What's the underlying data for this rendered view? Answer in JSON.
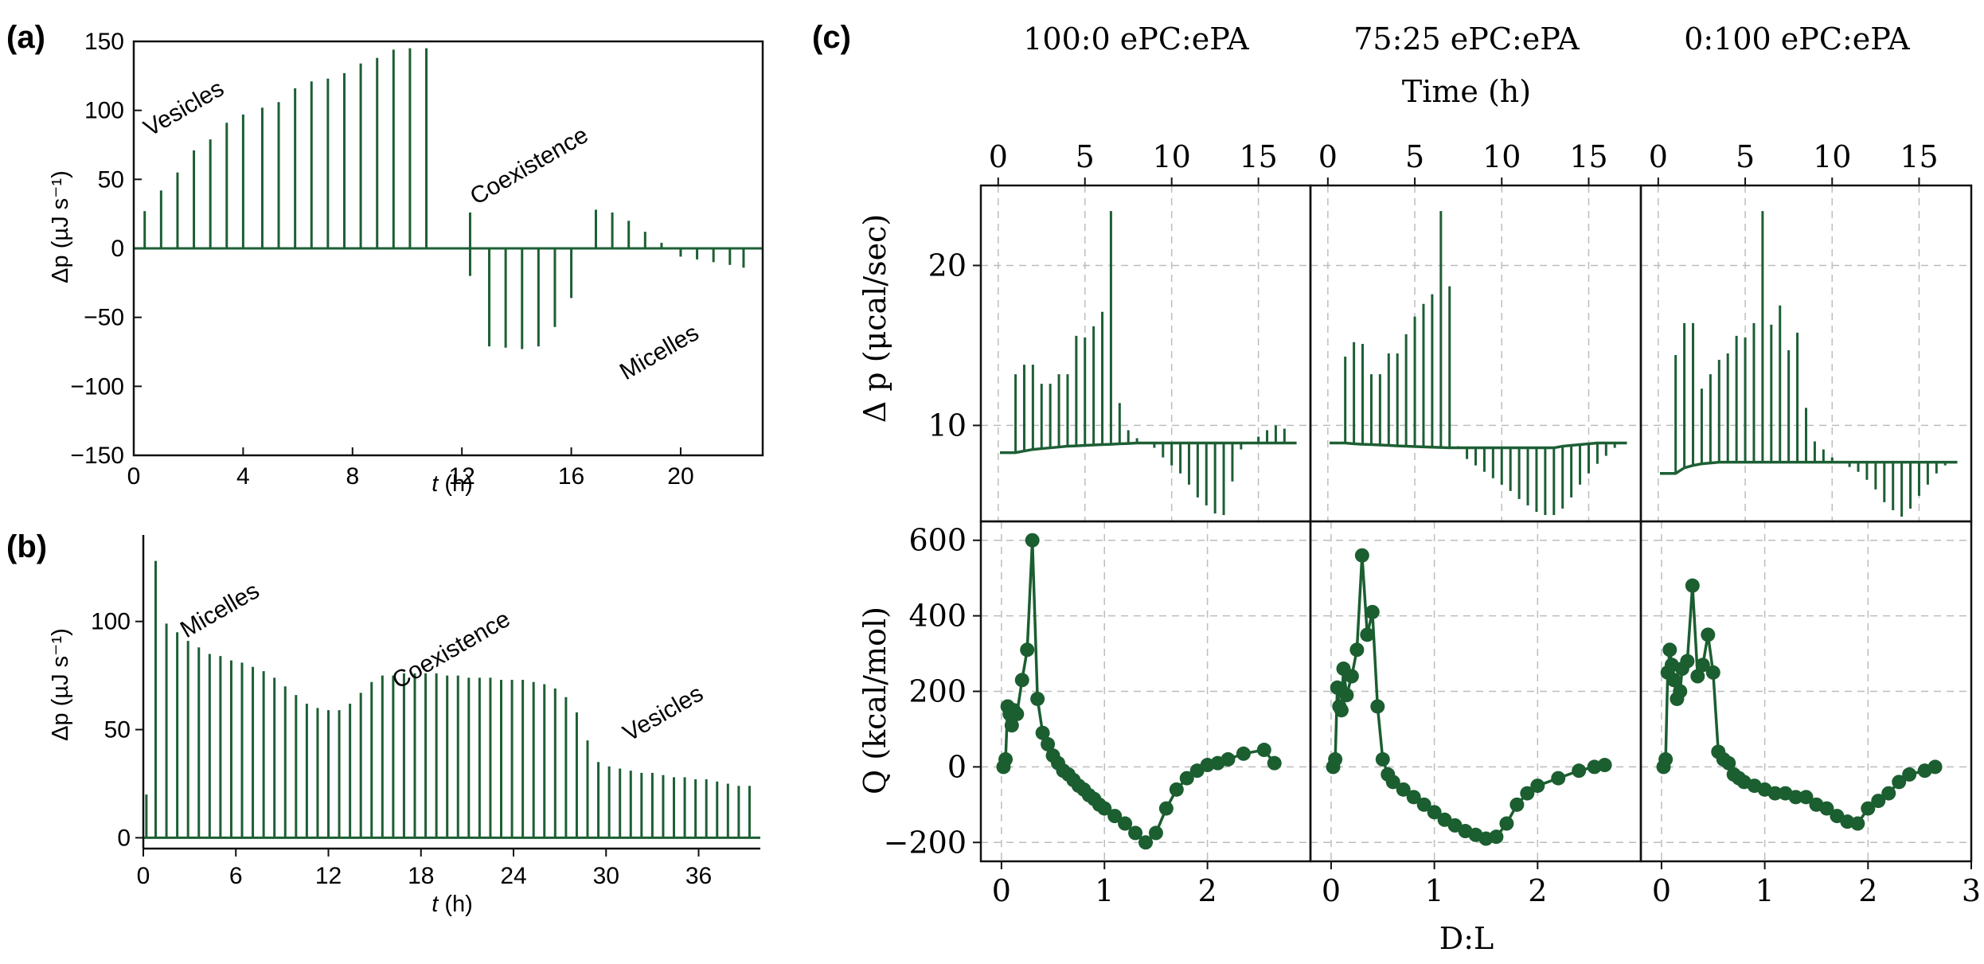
{
  "colors": {
    "ink": "#1d5f34",
    "axis": "#111111",
    "grid": "#bdbdbd",
    "marker": "#1b5e30"
  },
  "panel_a": {
    "label": "(a)",
    "xlabel_italic": "t",
    "xlabel_unit": " (h)",
    "ylabel": "Δp (µJ s⁻¹)",
    "annotations": [
      {
        "text": "Vesicles"
      },
      {
        "text": "Coexistence"
      },
      {
        "text": "Micelles"
      }
    ]
  },
  "panel_b": {
    "label": "(b)",
    "xlabel_italic": "t",
    "xlabel_unit": " (h)",
    "ylabel": "Δp (µJ s⁻¹)",
    "annotations": [
      {
        "text": "Micelles"
      },
      {
        "text": "Coexistence"
      },
      {
        "text": "Vesicles"
      }
    ]
  },
  "panel_c": {
    "label": "(c)",
    "titles": [
      "100:0 ePC:ePA",
      "75:25 ePC:ePA",
      "0:100 ePC:ePA"
    ],
    "top_xlabel": "Time (h)",
    "bottom_xlabel": "D:L",
    "top_ylabel": "Δ p (μcal/sec)",
    "bottom_ylabel": "Q (kcal/mol)"
  },
  "chart_data": [
    {
      "id": "a",
      "type": "bar",
      "style": "thermogram-spikes",
      "title": "",
      "xlabel": "t (h)",
      "ylabel": "Δp (µJ s⁻¹)",
      "xlim": [
        0,
        23
      ],
      "ylim": [
        -150,
        150
      ],
      "xticks": [
        0,
        4,
        8,
        12,
        16,
        20
      ],
      "yticks": [
        -150,
        -100,
        -50,
        0,
        50,
        100,
        150
      ],
      "x": [
        0.4,
        1.0,
        1.6,
        2.2,
        2.8,
        3.4,
        4.0,
        4.7,
        5.3,
        5.9,
        6.5,
        7.1,
        7.7,
        8.3,
        8.9,
        9.5,
        10.1,
        10.7,
        12.3,
        13.0,
        13.6,
        14.2,
        14.8,
        15.4,
        16.0,
        16.9,
        17.5,
        18.1,
        18.7,
        19.3,
        20.0,
        20.6,
        21.2,
        21.8,
        22.3
      ],
      "values": [
        27,
        42,
        55,
        71,
        79,
        91,
        97,
        102,
        106,
        116,
        121,
        123,
        127,
        134,
        138,
        144,
        145,
        145,
        26,
        -71,
        -72,
        -73,
        -71,
        -57,
        -36,
        28,
        26,
        20,
        12,
        4,
        -6,
        -8,
        -10,
        -12,
        -14
      ],
      "baseline_dips": [
        0,
        0,
        0,
        0,
        0,
        0,
        0,
        0,
        0,
        0,
        0,
        0,
        0,
        0,
        0,
        0,
        0,
        0,
        -20,
        0,
        0,
        0,
        0,
        0,
        0,
        0,
        0,
        0,
        0,
        0,
        0,
        0,
        0,
        0,
        0
      ],
      "annotations": [
        "Vesicles",
        "Coexistence",
        "Micelles"
      ]
    },
    {
      "id": "b",
      "type": "bar",
      "style": "thermogram-spikes",
      "title": "",
      "xlabel": "t (h)",
      "ylabel": "Δp (µJ s⁻¹)",
      "xlim": [
        0,
        40
      ],
      "ylim": [
        -5,
        140
      ],
      "xticks": [
        0,
        6,
        12,
        18,
        24,
        30,
        36
      ],
      "yticks": [
        0,
        50,
        100
      ],
      "x": [
        0.2,
        0.8,
        1.5,
        2.2,
        2.9,
        3.6,
        4.3,
        5.0,
        5.7,
        6.4,
        7.1,
        7.8,
        8.5,
        9.2,
        9.9,
        10.6,
        11.3,
        12.0,
        12.7,
        13.4,
        14.1,
        14.8,
        15.5,
        16.2,
        16.9,
        17.6,
        18.3,
        19.0,
        19.7,
        20.4,
        21.1,
        21.8,
        22.5,
        23.2,
        23.9,
        24.6,
        25.3,
        26.0,
        26.7,
        27.4,
        28.1,
        28.8,
        29.5,
        30.2,
        30.9,
        31.6,
        32.3,
        33.0,
        33.7,
        34.4,
        35.1,
        35.8,
        36.5,
        37.2,
        37.9,
        38.6,
        39.3
      ],
      "values": [
        20,
        128,
        99,
        95,
        91,
        88,
        85,
        84,
        82,
        81,
        79,
        77,
        74,
        70,
        66,
        62,
        60,
        59,
        59,
        62,
        67,
        72,
        75,
        75,
        76,
        76,
        76,
        76,
        75,
        75,
        74,
        74,
        74,
        73,
        73,
        73,
        72,
        71,
        69,
        65,
        58,
        45,
        35,
        33,
        32,
        31,
        30,
        30,
        29,
        28,
        28,
        27,
        27,
        26,
        25,
        24,
        24
      ],
      "annotations": [
        "Micelles",
        "Coexistence",
        "Vesicles"
      ]
    },
    {
      "id": "c-top",
      "type": "bar",
      "style": "thermogram-spikes",
      "xlabel": "Time (h)",
      "ylabel": "Δ p (μcal/sec)",
      "xlim": [
        -1,
        18
      ],
      "ylim": [
        4,
        25
      ],
      "xticks": [
        0,
        5,
        10,
        15
      ],
      "yticks": [
        10,
        20
      ],
      "series": [
        {
          "name": "100:0 ePC:ePA",
          "x": [
            1.0,
            1.5,
            2.0,
            2.5,
            3.0,
            3.5,
            4.0,
            4.5,
            5.0,
            5.5,
            6.0,
            6.5,
            7.0,
            7.5,
            8.0,
            8.5,
            9.0,
            9.5,
            10.0,
            10.5,
            11.0,
            11.5,
            12.0,
            12.5,
            13.0,
            13.5,
            14.0,
            14.5,
            15.0,
            15.5,
            16.0,
            16.5
          ],
          "values": [
            13.2,
            13.8,
            13.8,
            12.6,
            12.6,
            13.2,
            13.2,
            15.6,
            15.5,
            16.2,
            17.1,
            23.4,
            11.4,
            9.7,
            9.2,
            8.9,
            8.6,
            8.0,
            7.5,
            7.0,
            6.3,
            5.5,
            5.0,
            4.5,
            4.4,
            6.5,
            8.5,
            8.9,
            9.3,
            9.7,
            10.0,
            9.8
          ],
          "baseline": [
            8.3,
            8.4,
            8.5,
            8.55,
            8.6,
            8.65,
            8.7,
            8.72,
            8.75,
            8.78,
            8.8,
            8.82,
            8.85,
            8.87,
            8.9,
            8.9,
            8.9,
            8.9,
            8.9,
            8.9,
            8.9,
            8.9,
            8.9,
            8.9,
            8.9,
            8.9,
            8.9,
            8.9,
            8.9,
            8.9,
            8.9,
            8.9
          ]
        },
        {
          "name": "75:25 ePC:ePA",
          "x": [
            1.0,
            1.5,
            2.0,
            2.5,
            3.0,
            3.5,
            4.0,
            4.5,
            5.0,
            5.5,
            6.0,
            6.5,
            7.0,
            7.5,
            8.0,
            8.5,
            9.0,
            9.5,
            10.0,
            10.5,
            11.0,
            11.5,
            12.0,
            12.5,
            13.0,
            13.5,
            14.0,
            14.5,
            15.0,
            15.5,
            16.0,
            16.5
          ],
          "values": [
            14.3,
            15.2,
            15.1,
            13.2,
            13.2,
            14.5,
            14.5,
            15.7,
            16.8,
            17.6,
            18.2,
            23.4,
            18.7,
            8.7,
            7.9,
            7.5,
            7.1,
            6.7,
            6.3,
            5.9,
            5.4,
            5.0,
            4.6,
            4.4,
            4.4,
            4.8,
            5.5,
            6.3,
            7.0,
            7.6,
            8.1,
            8.6
          ],
          "baseline": [
            8.9,
            8.85,
            8.82,
            8.8,
            8.78,
            8.75,
            8.72,
            8.7,
            8.68,
            8.66,
            8.64,
            8.62,
            8.6,
            8.6,
            8.6,
            8.6,
            8.6,
            8.6,
            8.6,
            8.6,
            8.6,
            8.6,
            8.6,
            8.6,
            8.6,
            8.7,
            8.75,
            8.8,
            8.85,
            8.9,
            8.9,
            8.9
          ]
        },
        {
          "name": "0:100 ePC:ePA",
          "x": [
            1.0,
            1.5,
            2.0,
            2.5,
            3.0,
            3.5,
            4.0,
            4.5,
            5.0,
            5.5,
            6.0,
            6.5,
            7.0,
            7.5,
            8.0,
            8.5,
            9.0,
            9.5,
            10.0,
            10.5,
            11.0,
            11.5,
            12.0,
            12.5,
            13.0,
            13.5,
            14.0,
            14.5,
            15.0,
            15.5,
            16.0,
            16.5
          ],
          "values": [
            14.4,
            16.4,
            16.4,
            12.3,
            13.2,
            14.1,
            14.5,
            15.6,
            15.5,
            16.4,
            23.4,
            16.3,
            17.5,
            14.7,
            15.8,
            11.1,
            9.0,
            8.5,
            8.0,
            7.7,
            7.4,
            7.1,
            6.6,
            6.0,
            5.2,
            4.7,
            4.3,
            4.8,
            5.6,
            6.3,
            7.0,
            7.5
          ],
          "baseline": [
            7.0,
            7.35,
            7.5,
            7.6,
            7.65,
            7.7,
            7.7,
            7.7,
            7.7,
            7.7,
            7.7,
            7.7,
            7.7,
            7.7,
            7.7,
            7.7,
            7.7,
            7.7,
            7.7,
            7.7,
            7.7,
            7.7,
            7.7,
            7.7,
            7.7,
            7.7,
            7.7,
            7.7,
            7.7,
            7.7,
            7.7,
            7.7
          ]
        }
      ]
    },
    {
      "id": "c-bottom",
      "type": "line",
      "xlabel": "D:L",
      "ylabel": "Q (kcal/mol)",
      "xlim": [
        -0.2,
        3.0
      ],
      "ylim": [
        -250,
        650
      ],
      "xticks": [
        0,
        1,
        2,
        3
      ],
      "yticks": [
        -200,
        0,
        200,
        400,
        600
      ],
      "series": [
        {
          "name": "100:0 ePC:ePA",
          "x": [
            0.02,
            0.04,
            0.06,
            0.08,
            0.1,
            0.12,
            0.15,
            0.2,
            0.25,
            0.3,
            0.35,
            0.4,
            0.45,
            0.5,
            0.55,
            0.6,
            0.65,
            0.7,
            0.75,
            0.8,
            0.85,
            0.9,
            0.95,
            1.0,
            1.1,
            1.2,
            1.3,
            1.4,
            1.5,
            1.6,
            1.7,
            1.8,
            1.9,
            2.0,
            2.1,
            2.2,
            2.35,
            2.55,
            2.65
          ],
          "values": [
            0,
            20,
            160,
            140,
            110,
            150,
            140,
            230,
            310,
            600,
            180,
            90,
            60,
            30,
            10,
            -10,
            -20,
            -35,
            -50,
            -60,
            -75,
            -85,
            -100,
            -110,
            -130,
            -150,
            -175,
            -200,
            -175,
            -110,
            -60,
            -30,
            -10,
            5,
            10,
            20,
            35,
            45,
            10
          ]
        },
        {
          "name": "75:25 ePC:ePA",
          "x": [
            0.02,
            0.04,
            0.06,
            0.08,
            0.1,
            0.12,
            0.15,
            0.2,
            0.25,
            0.3,
            0.35,
            0.4,
            0.45,
            0.5,
            0.55,
            0.6,
            0.7,
            0.8,
            0.9,
            1.0,
            1.1,
            1.2,
            1.3,
            1.4,
            1.5,
            1.6,
            1.7,
            1.8,
            1.9,
            2.0,
            2.2,
            2.4,
            2.55,
            2.65
          ],
          "values": [
            0,
            20,
            210,
            160,
            150,
            260,
            190,
            240,
            310,
            560,
            350,
            410,
            160,
            20,
            -20,
            -40,
            -60,
            -80,
            -100,
            -120,
            -140,
            -155,
            -170,
            -180,
            -190,
            -185,
            -150,
            -100,
            -70,
            -50,
            -30,
            -10,
            0,
            5
          ]
        },
        {
          "name": "0:100 ePC:ePA",
          "x": [
            0.02,
            0.04,
            0.06,
            0.08,
            0.1,
            0.12,
            0.15,
            0.18,
            0.2,
            0.25,
            0.3,
            0.35,
            0.4,
            0.45,
            0.5,
            0.55,
            0.6,
            0.65,
            0.7,
            0.75,
            0.8,
            0.9,
            1.0,
            1.1,
            1.2,
            1.3,
            1.4,
            1.5,
            1.6,
            1.7,
            1.8,
            1.9,
            2.0,
            2.1,
            2.2,
            2.3,
            2.4,
            2.55,
            2.65
          ],
          "values": [
            0,
            20,
            250,
            310,
            270,
            230,
            180,
            200,
            260,
            280,
            480,
            240,
            270,
            350,
            250,
            40,
            20,
            10,
            -20,
            -30,
            -40,
            -50,
            -60,
            -70,
            -70,
            -80,
            -80,
            -100,
            -110,
            -130,
            -145,
            -150,
            -110,
            -90,
            -70,
            -40,
            -20,
            -10,
            0
          ]
        }
      ]
    }
  ]
}
